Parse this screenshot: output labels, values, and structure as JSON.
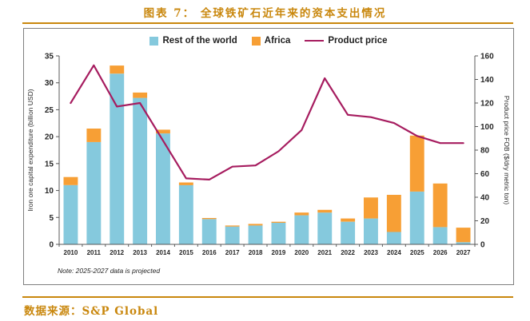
{
  "page": {
    "title": "图表 7： 全球铁矿石近年来的资本支出情况",
    "source": "数据来源：S&P Global",
    "accent_color": "#C9870D"
  },
  "chart_data": {
    "type": "bar",
    "subtype": "stacked-bars-with-line-overlay",
    "grid": false,
    "legend_position": "top",
    "note": "Note: 2025-2027 data is projected",
    "categories": [
      "2010",
      "2011",
      "2012",
      "2013",
      "2014",
      "2015",
      "2016",
      "2017",
      "2018",
      "2019",
      "2020",
      "2021",
      "2022",
      "2023",
      "2024",
      "2025",
      "2026",
      "2027"
    ],
    "series": [
      {
        "name": "Rest of the world",
        "type": "bar",
        "axis": "left",
        "color": "#85C9DD",
        "values": [
          11,
          19,
          31.7,
          27.2,
          20.6,
          11,
          4.7,
          3.3,
          3.5,
          4,
          5.4,
          5.9,
          4.2,
          4.8,
          2.3,
          9.8,
          3.2,
          0.4
        ]
      },
      {
        "name": "Africa",
        "type": "bar",
        "axis": "left",
        "color": "#F79F35",
        "values": [
          1.5,
          2.5,
          1.5,
          1,
          0.7,
          0.5,
          0.2,
          0.2,
          0.3,
          0.2,
          0.5,
          0.5,
          0.6,
          3.9,
          6.9,
          10.4,
          8.1,
          2.7
        ]
      },
      {
        "name": "Product price",
        "type": "line",
        "axis": "right",
        "color": "#A61C5F",
        "values": [
          120,
          152,
          117,
          120,
          88,
          56,
          55,
          66,
          67,
          79,
          97,
          141,
          110,
          108,
          103,
          92,
          86,
          86
        ]
      }
    ],
    "left_axis": {
      "title": "Iron ore capital expenditure (billion USD)",
      "min": 0,
      "max": 35,
      "step": 5
    },
    "right_axis": {
      "title": "Product price FOB ($/dry metric ton)",
      "min": 0,
      "max": 160,
      "step": 20
    }
  }
}
